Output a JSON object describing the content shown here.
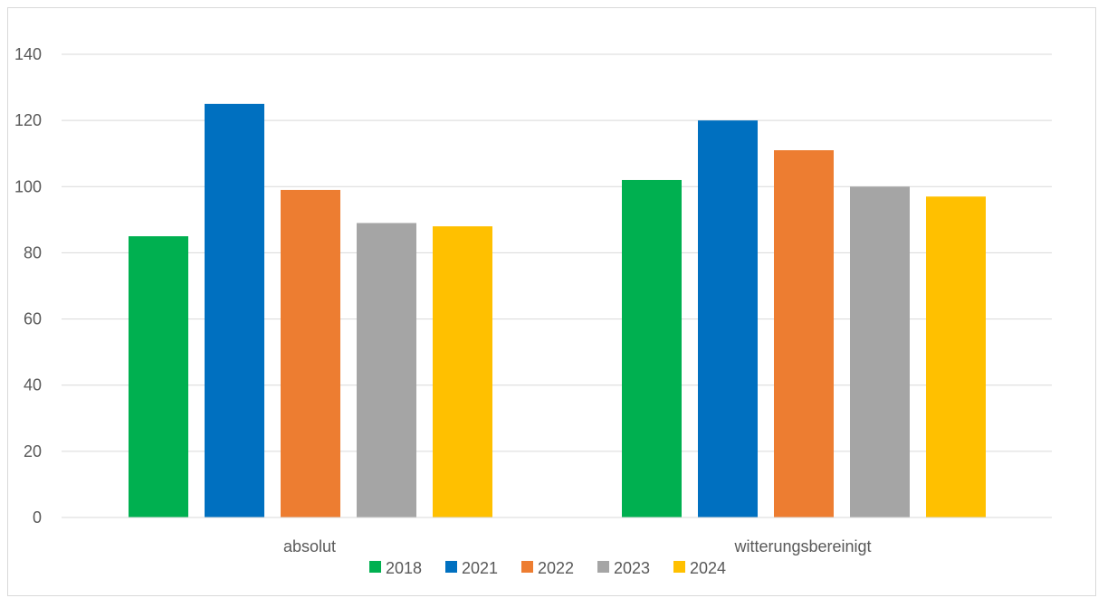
{
  "chart_data": {
    "type": "bar",
    "categories": [
      "absolut",
      "witterungsbereinigt"
    ],
    "series": [
      {
        "name": "2018",
        "values": [
          85,
          102
        ],
        "color": "#00b050"
      },
      {
        "name": "2021",
        "values": [
          125,
          120
        ],
        "color": "#0070c0"
      },
      {
        "name": "2022",
        "values": [
          99,
          111
        ],
        "color": "#ed7d31"
      },
      {
        "name": "2023",
        "values": [
          89,
          100
        ],
        "color": "#a5a5a5"
      },
      {
        "name": "2024",
        "values": [
          88,
          97
        ],
        "color": "#ffc000"
      }
    ],
    "yticks": [
      "0",
      "20",
      "40",
      "60",
      "80",
      "100",
      "120",
      "140"
    ],
    "ylim": [
      0,
      140
    ],
    "grid": true,
    "legend": "bottom",
    "gridline_color": "#d9d9d9",
    "axis_color": "#d9d9d9",
    "text_color": "#595959"
  }
}
